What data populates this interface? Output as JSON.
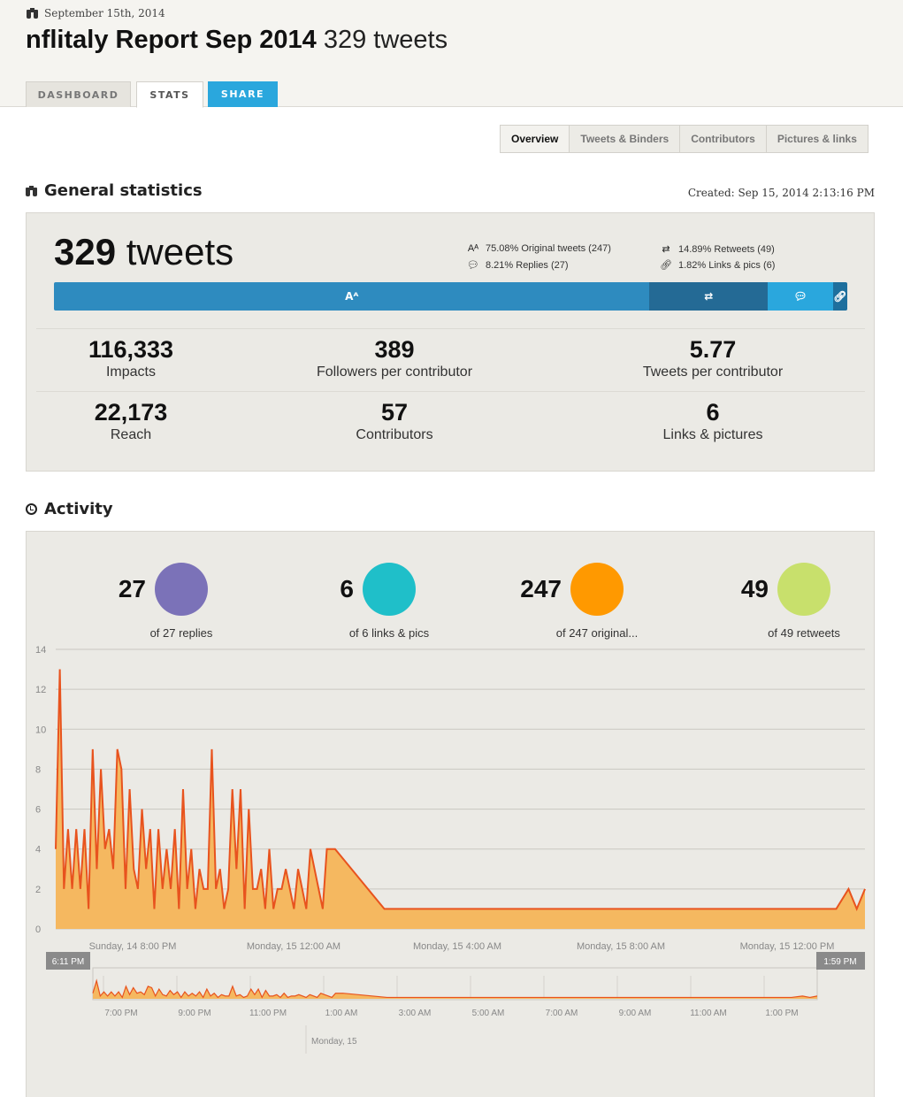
{
  "header": {
    "date": "September 15th, 2014",
    "title_bold": "nflitaly Report Sep 2014",
    "title_rest": "329 tweets",
    "tabs": [
      "DASHBOARD",
      "STATS",
      "SHARE"
    ]
  },
  "subnav": [
    "Overview",
    "Tweets & Binders",
    "Contributors",
    "Pictures & links"
  ],
  "general": {
    "heading": "General statistics",
    "created": "Created: Sep 15, 2014 2:13:16 PM",
    "tweets_count": "329",
    "tweets_word": "tweets",
    "legend": {
      "original": "75.08% Original tweets (247)",
      "retweets": "14.89% Retweets (49)",
      "replies": "8.21% Replies (27)",
      "links": "1.82% Links & pics (6)"
    },
    "bar_fractions": {
      "original": 0.7508,
      "retweets": 0.1489,
      "replies": 0.0821,
      "links": 0.0182
    },
    "colors": {
      "original": "#2e8bbf",
      "retweets": "#246a95",
      "replies": "#2aa7dd",
      "links": "#1e6f9d"
    },
    "kpis": [
      {
        "num": "116,333",
        "label": "Impacts"
      },
      {
        "num": "389",
        "label": "Followers per contributor"
      },
      {
        "num": "5.77",
        "label": "Tweets per contributor"
      },
      {
        "num": "22,173",
        "label": "Reach"
      },
      {
        "num": "57",
        "label": "Contributors"
      },
      {
        "num": "6",
        "label": "Links & pictures"
      }
    ]
  },
  "activity": {
    "heading": "Activity",
    "categories": [
      {
        "num": "27",
        "label": "of 27 replies",
        "color": "#7b72b8"
      },
      {
        "num": "6",
        "label": "of 6 links & pics",
        "color": "#1fbfc9"
      },
      {
        "num": "247",
        "label": "of 247 original...",
        "color": "#ff9900"
      },
      {
        "num": "49",
        "label": "of 49 retweets",
        "color": "#c8e06c"
      }
    ],
    "nav_start": "6:11 PM",
    "nav_end": "1:59 PM",
    "nav_date": "Monday, 15"
  },
  "chart_data": {
    "type": "area",
    "ylim": [
      0,
      14
    ],
    "yticks": [
      0,
      2,
      4,
      6,
      8,
      10,
      12,
      14
    ],
    "xticks": [
      "Sunday, 14 8:00 PM",
      "Monday, 15 12:00 AM",
      "Monday, 15 4:00 AM",
      "Monday, 15 8:00 AM",
      "Monday, 15 12:00 PM"
    ],
    "nav_xticks": [
      "7:00 PM",
      "9:00 PM",
      "11:00 PM",
      "1:00 AM",
      "3:00 AM",
      "5:00 AM",
      "7:00 AM",
      "9:00 AM",
      "11:00 AM",
      "1:00 PM"
    ],
    "x_hours": [
      0,
      0.1,
      0.2,
      0.3,
      0.4,
      0.5,
      0.6,
      0.7,
      0.8,
      0.9,
      1.0,
      1.1,
      1.2,
      1.3,
      1.4,
      1.5,
      1.6,
      1.7,
      1.8,
      1.9,
      2.0,
      2.1,
      2.2,
      2.3,
      2.4,
      2.5,
      2.6,
      2.7,
      2.8,
      2.9,
      3.0,
      3.1,
      3.2,
      3.3,
      3.4,
      3.5,
      3.6,
      3.7,
      3.8,
      3.9,
      4.0,
      4.1,
      4.2,
      4.3,
      4.4,
      4.5,
      4.6,
      4.7,
      4.8,
      4.9,
      5.0,
      5.1,
      5.2,
      5.3,
      5.4,
      5.5,
      5.6,
      5.7,
      5.8,
      5.9,
      6.0,
      6.1,
      6.2,
      6.3,
      6.4,
      6.5,
      6.6,
      6.8,
      8.0,
      11.0,
      13.0,
      15.0,
      17.0,
      19.0,
      19.3,
      19.5,
      19.7
    ],
    "series": [
      {
        "name": "original",
        "color": "#f5b860",
        "values": [
          4,
          13,
          2,
          5,
          2,
          5,
          2,
          5,
          1,
          9,
          3,
          8,
          4,
          5,
          3,
          9,
          8,
          2,
          7,
          3,
          2,
          6,
          3,
          5,
          1,
          5,
          2,
          4,
          2,
          5,
          1,
          7,
          2,
          4,
          1,
          3,
          2,
          2,
          9,
          2,
          3,
          1,
          2,
          7,
          3,
          7,
          1,
          6,
          2,
          2,
          3,
          1,
          4,
          1,
          2,
          2,
          3,
          2,
          1,
          3,
          2,
          1,
          4,
          3,
          2,
          1,
          4,
          4,
          1,
          1,
          1,
          1,
          1,
          1,
          2,
          1,
          2
        ]
      },
      {
        "name": "line",
        "color": "#e8531e",
        "values": [
          4,
          13,
          2,
          5,
          2,
          5,
          2,
          5,
          1,
          9,
          3,
          8,
          4,
          5,
          3,
          9,
          8,
          2,
          7,
          3,
          2,
          6,
          3,
          5,
          1,
          5,
          2,
          4,
          2,
          5,
          1,
          7,
          2,
          4,
          1,
          3,
          2,
          2,
          9,
          2,
          3,
          1,
          2,
          7,
          3,
          7,
          1,
          6,
          2,
          2,
          3,
          1,
          4,
          1,
          2,
          2,
          3,
          2,
          1,
          3,
          2,
          1,
          4,
          3,
          2,
          1,
          4,
          4,
          1,
          1,
          1,
          1,
          1,
          1,
          2,
          1,
          2
        ]
      }
    ]
  }
}
